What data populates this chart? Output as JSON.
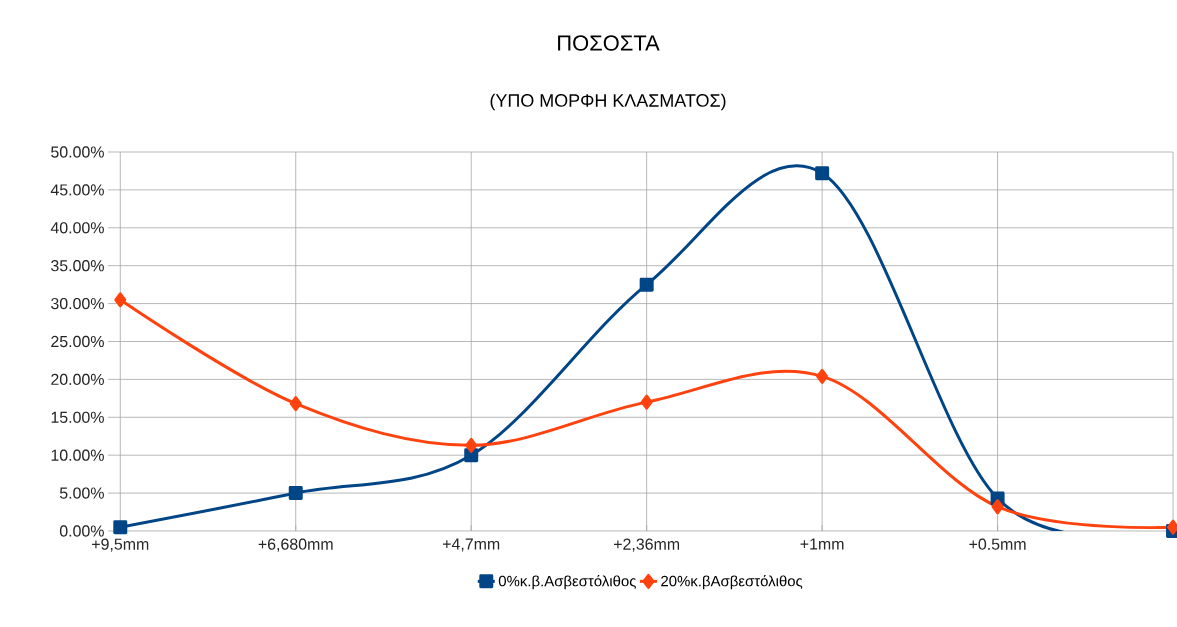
{
  "chart_data": {
    "type": "line",
    "title": "ΠΟΣΟΣΤΑ",
    "subtitle": "(ΥΠΟ ΜΟΡΦΗ ΚΛΑΣΜΑΤΟΣ)",
    "categories": [
      "+9,5mm",
      "+6,680mm",
      "+4,7mm",
      "+2,36mm",
      "+1mm",
      "+0.5mm",
      null
    ],
    "series": [
      {
        "name": "0%κ.β.Ασβεστόλιθος",
        "color": "#004586",
        "marker": "square",
        "values": [
          0.5,
          5.0,
          10.0,
          32.5,
          47.2,
          4.3,
          0.0
        ]
      },
      {
        "name": "20%κ.βΑσβεστόλιθος",
        "color": "#ff420e",
        "marker": "diamond",
        "values": [
          30.5,
          16.8,
          11.3,
          17.0,
          20.4,
          3.2,
          0.5
        ]
      }
    ],
    "ylim": [
      0,
      50
    ],
    "yticks": [
      {
        "value": 0,
        "label": "0.00%"
      },
      {
        "value": 5,
        "label": "5.00%"
      },
      {
        "value": 10,
        "label": "10.00%"
      },
      {
        "value": 15,
        "label": "15.00%"
      },
      {
        "value": 20,
        "label": "20.00%"
      },
      {
        "value": 25,
        "label": "25.00%"
      },
      {
        "value": 30,
        "label": "30.00%"
      },
      {
        "value": 35,
        "label": "35.00%"
      },
      {
        "value": 40,
        "label": "40.00%"
      },
      {
        "value": 45,
        "label": "45.00%"
      },
      {
        "value": 50,
        "label": "50.00%"
      }
    ],
    "grid": true,
    "legend": "bottom"
  }
}
